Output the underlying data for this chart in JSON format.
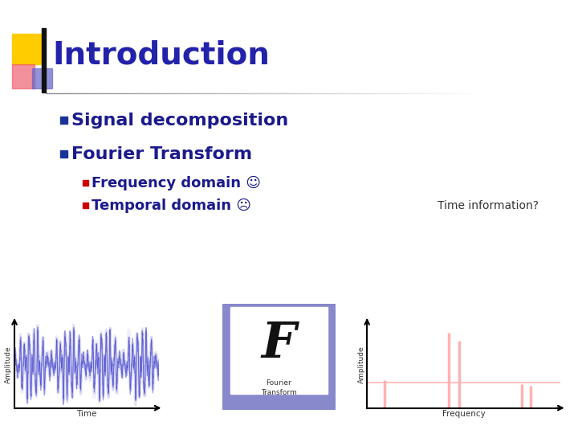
{
  "title": "Introduction",
  "title_color": "#2222AA",
  "title_fontsize": 28,
  "bullet1": "Signal decomposition",
  "bullet2": "Fourier Transform",
  "sub_bullet1": "Frequency domain ☺",
  "sub_bullet2": "Temporal domain ☹",
  "annotation": "Time information?",
  "bullet_color": "#1a1a8c",
  "sub_bullet_color": "#1a1a8c",
  "bullet_marker_color": "#1a3399",
  "sub_bullet_marker_color": "#cc0000",
  "background_color": "#ffffff",
  "header_bar_color": "#1a1a99",
  "header_square_yellow": "#ffcc00",
  "header_square_red": "#ee5566",
  "fourier_box_color": "#8888cc",
  "fourier_letter_color": "#111111",
  "fourier_text_color": "#333333",
  "time_signal_color": "#4444cc",
  "freq_signal_color": "#ffaaaa",
  "bullet_fontsize": 16,
  "sub_bullet_fontsize": 13,
  "annotation_fontsize": 10
}
